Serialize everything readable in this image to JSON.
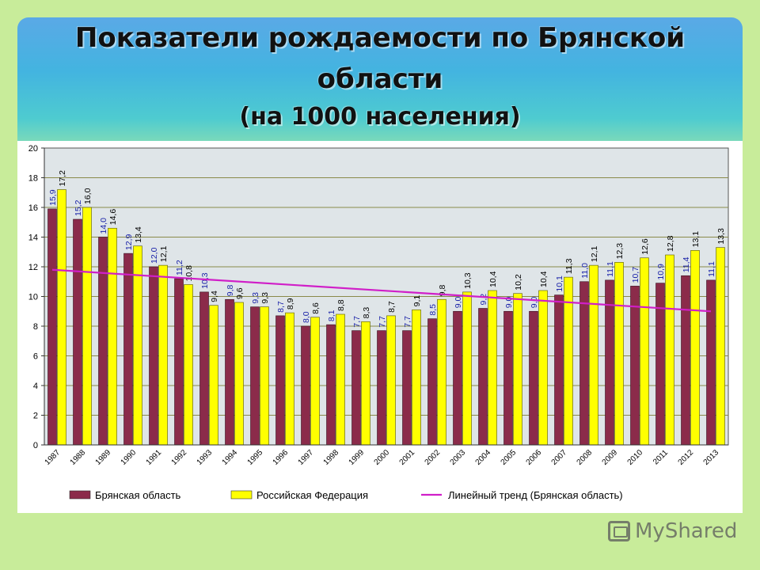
{
  "slide": {
    "title_line1": "Показатели рождаемости по Брянской",
    "title_line2": "области",
    "title_line3": "(на 1000 населения)"
  },
  "watermark": {
    "text": "MyShared",
    "icon": "myshared-logo-icon"
  },
  "colors": {
    "bryansk": "#8b2b4a",
    "russia": "#ffff00",
    "trend": "#d01fc8",
    "plot_bg": "#dfe5e8",
    "grid": "#8a8a4a"
  },
  "chart_data": {
    "type": "bar",
    "categories": [
      "1987",
      "1988",
      "1989",
      "1990",
      "1991",
      "1992",
      "1993",
      "1994",
      "1995",
      "1996",
      "1997",
      "1998",
      "1999",
      "2000",
      "2001",
      "2002",
      "2003",
      "2004",
      "2005",
      "2006",
      "2007",
      "2008",
      "2009",
      "2010",
      "2011",
      "2012",
      "2013"
    ],
    "series": [
      {
        "name": "Брянская область",
        "values": [
          15.9,
          15.2,
          14.0,
          12.9,
          12.0,
          11.2,
          10.3,
          9.8,
          9.3,
          8.7,
          8.0,
          8.1,
          7.7,
          7.7,
          7.7,
          8.5,
          9.0,
          9.2,
          9.0,
          9.0,
          10.1,
          11.0,
          11.1,
          10.7,
          10.9,
          11.4,
          11.1
        ],
        "labels": [
          "15,9",
          "15,2",
          "14,0",
          "12,9",
          "12,0",
          "11,2",
          "10,3",
          "9,8",
          "9,3",
          "8,7",
          "8,0",
          "8,1",
          "7,7",
          "7,7",
          "7,7",
          "8,5",
          "9,0",
          "9,2",
          "9,0",
          "9,0",
          "10,1",
          "11,0",
          "11,1",
          "10,7",
          "10,9",
          "11,4",
          "11,1"
        ]
      },
      {
        "name": "Российская Федерация",
        "values": [
          17.2,
          16.0,
          14.6,
          13.4,
          12.1,
          10.8,
          9.4,
          9.6,
          9.3,
          8.9,
          8.6,
          8.8,
          8.3,
          8.7,
          9.1,
          9.8,
          10.3,
          10.4,
          10.2,
          10.4,
          11.3,
          12.1,
          12.3,
          12.6,
          12.8,
          13.1,
          13.3
        ],
        "labels": [
          "17,2",
          "16,0",
          "14,6",
          "13,4",
          "12,1",
          "10,8",
          "9,4",
          "9,6",
          "9,3",
          "8,9",
          "8,6",
          "8,8",
          "8,3",
          "8,7",
          "9,1",
          "9,8",
          "10,3",
          "10,4",
          "10,2",
          "10,4",
          "11,3",
          "12,1",
          "12,3",
          "12,6",
          "12,8",
          "13,1",
          "13,3"
        ]
      }
    ],
    "trend": {
      "name": "Линейный тренд (Брянская область)",
      "start": 11.8,
      "end": 9.0
    },
    "ylim": [
      0,
      20
    ],
    "yticks": [
      "0",
      "2",
      "4",
      "6",
      "8",
      "10",
      "12",
      "14",
      "16",
      "18",
      "20"
    ],
    "grid": true,
    "legend_position": "bottom"
  }
}
